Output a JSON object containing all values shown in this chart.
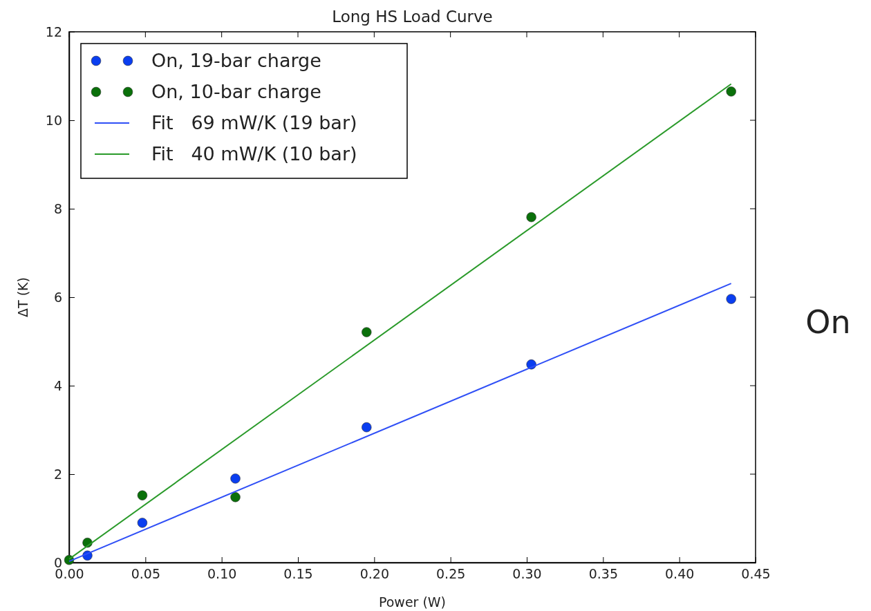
{
  "chart_data": {
    "type": "scatter",
    "title": "Long HS Load Curve",
    "xlabel": "Power (W)",
    "ylabel": "ΔT (K)",
    "xlim": [
      0,
      0.45
    ],
    "ylim": [
      0,
      12
    ],
    "xticks": [
      {
        "value": 0,
        "label": "0.00"
      },
      {
        "value": 0.05,
        "label": "0.05"
      },
      {
        "value": 0.1,
        "label": "0.10"
      },
      {
        "value": 0.15,
        "label": "0.15"
      },
      {
        "value": 0.2,
        "label": "0.20"
      },
      {
        "value": 0.25,
        "label": "0.25"
      },
      {
        "value": 0.3,
        "label": "0.30"
      },
      {
        "value": 0.35,
        "label": "0.35"
      },
      {
        "value": 0.4,
        "label": "0.40"
      },
      {
        "value": 0.45,
        "label": "0.45"
      }
    ],
    "yticks": [
      0,
      2,
      4,
      6,
      8,
      10,
      12
    ],
    "grid": false,
    "legend": "top left",
    "series": [
      {
        "name": "On, 19-bar charge",
        "marker": "circle",
        "color": "#0a3ef0",
        "x": [
          0.012,
          0.048,
          0.109,
          0.195,
          0.303,
          0.434
        ],
        "values": [
          0.16,
          0.9,
          1.9,
          3.06,
          4.48,
          5.96
        ]
      },
      {
        "name": "On, 10-bar charge",
        "marker": "circle",
        "color": "#0a700a",
        "x": [
          0,
          0.012,
          0.048,
          0.109,
          0.195,
          0.303,
          0.434
        ],
        "values": [
          0.06,
          0.45,
          1.52,
          1.48,
          5.21,
          7.81,
          10.65
        ]
      },
      {
        "name": "Fit   69 mW/K (19 bar)",
        "type": "line",
        "line_style": "solid",
        "color": "#2f4ff6",
        "x": [
          0,
          0.434
        ],
        "values": [
          0.03,
          6.31
        ]
      },
      {
        "name": "Fit   40 mW/K (10 bar)",
        "type": "line",
        "line_style": "solid",
        "color": "#2a9a2a",
        "x": [
          0,
          0.434
        ],
        "values": [
          0.08,
          10.82
        ]
      }
    ],
    "annotations": [
      "On"
    ]
  }
}
